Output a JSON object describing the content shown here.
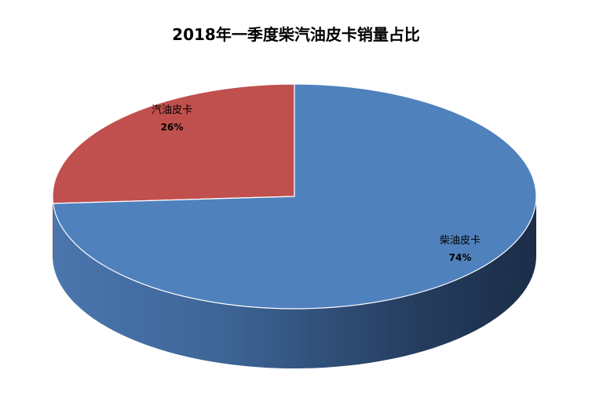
{
  "chart_data": {
    "type": "pie",
    "title": "2018年一季度柴汽油皮卡销量占比",
    "slices": [
      {
        "name": "汽油皮卡",
        "value": 26,
        "label": "26%",
        "color": "#c0504d"
      },
      {
        "name": "柴油皮卡",
        "value": 74,
        "label": "74%",
        "color": "#4f81bd"
      }
    ],
    "legend": "none",
    "style": "3d"
  }
}
